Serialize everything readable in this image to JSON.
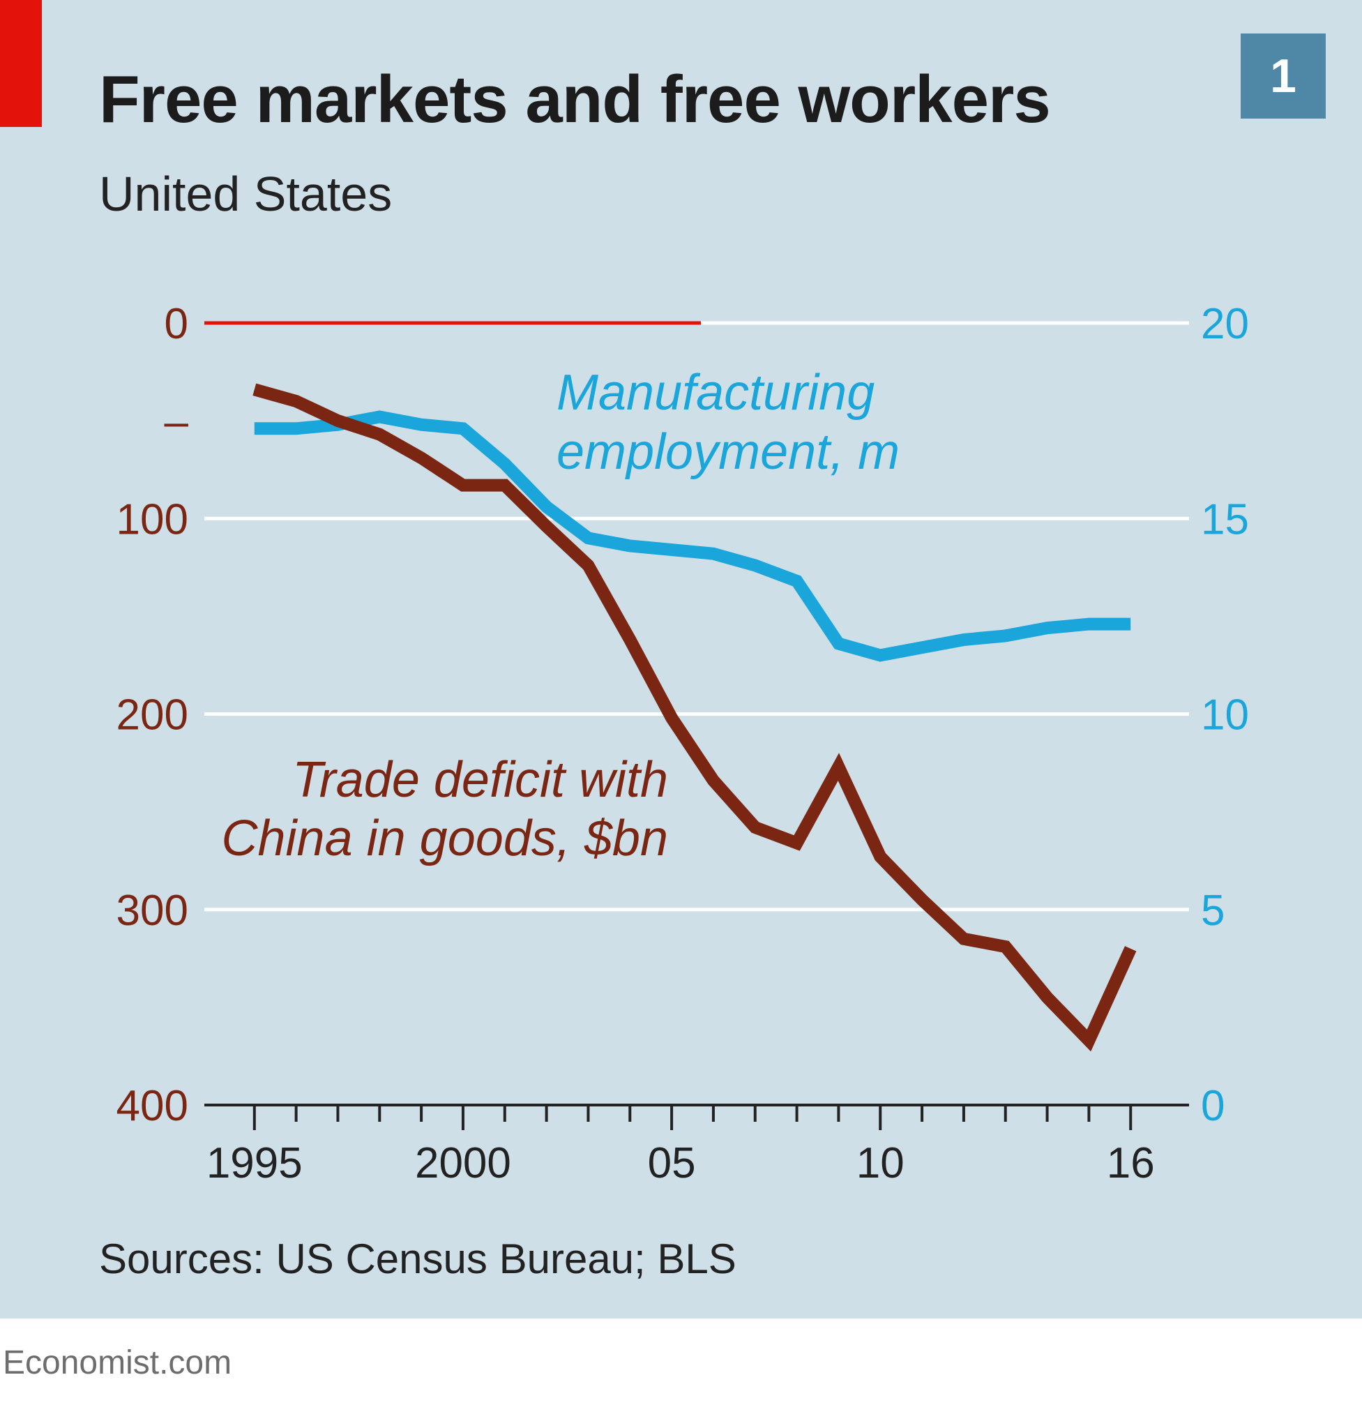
{
  "header": {
    "title": "Free markets and free workers",
    "subtitle": "United States",
    "badge": "1"
  },
  "footer": {
    "source": "Sources: US Census Bureau; BLS",
    "credit": "Economist.com"
  },
  "colors": {
    "background": "#cfdfe8",
    "accent_red": "#e3120b",
    "employment_line": "#1aa5db",
    "deficit_line": "#7a2613",
    "badge": "#4f87a6"
  },
  "chart_data": {
    "type": "line",
    "title": "Free markets and free workers",
    "subtitle": "United States",
    "x": [
      1995,
      1996,
      1997,
      1998,
      1999,
      2000,
      2001,
      2002,
      2003,
      2004,
      2005,
      2006,
      2007,
      2008,
      2009,
      2010,
      2011,
      2012,
      2013,
      2014,
      2015,
      2016
    ],
    "x_range": [
      1993.8,
      2017.4
    ],
    "x_ticks": [
      1995,
      1996,
      1997,
      1998,
      1999,
      2000,
      2001,
      2002,
      2003,
      2004,
      2005,
      2006,
      2007,
      2008,
      2009,
      2010,
      2011,
      2012,
      2013,
      2014,
      2015,
      2016
    ],
    "x_tick_labels": [
      {
        "x": 1995,
        "label": "1995"
      },
      {
        "x": 2000,
        "label": "2000"
      },
      {
        "x": 2005,
        "label": "05"
      },
      {
        "x": 2010,
        "label": "10"
      },
      {
        "x": 2016,
        "label": "16"
      }
    ],
    "y_left": {
      "range": [
        0,
        400
      ],
      "inverted": true,
      "ticks": [
        "0",
        "–",
        "100",
        "200",
        "300",
        "400"
      ],
      "tick_values": [
        0,
        50,
        100,
        200,
        300,
        400
      ],
      "unit": "$bn"
    },
    "y_right": {
      "range": [
        0,
        20
      ],
      "ticks": [
        "20",
        "15",
        "10",
        "5",
        "0"
      ],
      "tick_values": [
        20,
        15,
        10,
        5,
        0
      ],
      "unit": "m"
    },
    "gridlines": [
      0,
      100,
      200,
      300
    ],
    "zero_line_highlight": {
      "from": 1993.8,
      "to": 2005.7
    },
    "series": [
      {
        "name": "Manufacturing employment, m",
        "axis": "right",
        "label_lines": [
          "Manufacturing",
          "employment, m"
        ],
        "values": [
          17.3,
          17.3,
          17.4,
          17.6,
          17.4,
          17.3,
          16.4,
          15.3,
          14.5,
          14.3,
          14.2,
          14.1,
          13.8,
          13.4,
          11.8,
          11.5,
          11.7,
          11.9,
          12.0,
          12.2,
          12.3,
          12.3
        ]
      },
      {
        "name": "Trade deficit with China in goods, $bn",
        "axis": "left",
        "label_lines": [
          "Trade deficit with",
          "China in goods, $bn"
        ],
        "values": [
          34,
          40,
          50,
          57,
          69,
          83,
          83,
          104,
          124,
          162,
          202,
          234,
          258,
          266,
          227,
          273,
          295,
          315,
          319,
          345,
          367,
          320
        ]
      }
    ]
  }
}
